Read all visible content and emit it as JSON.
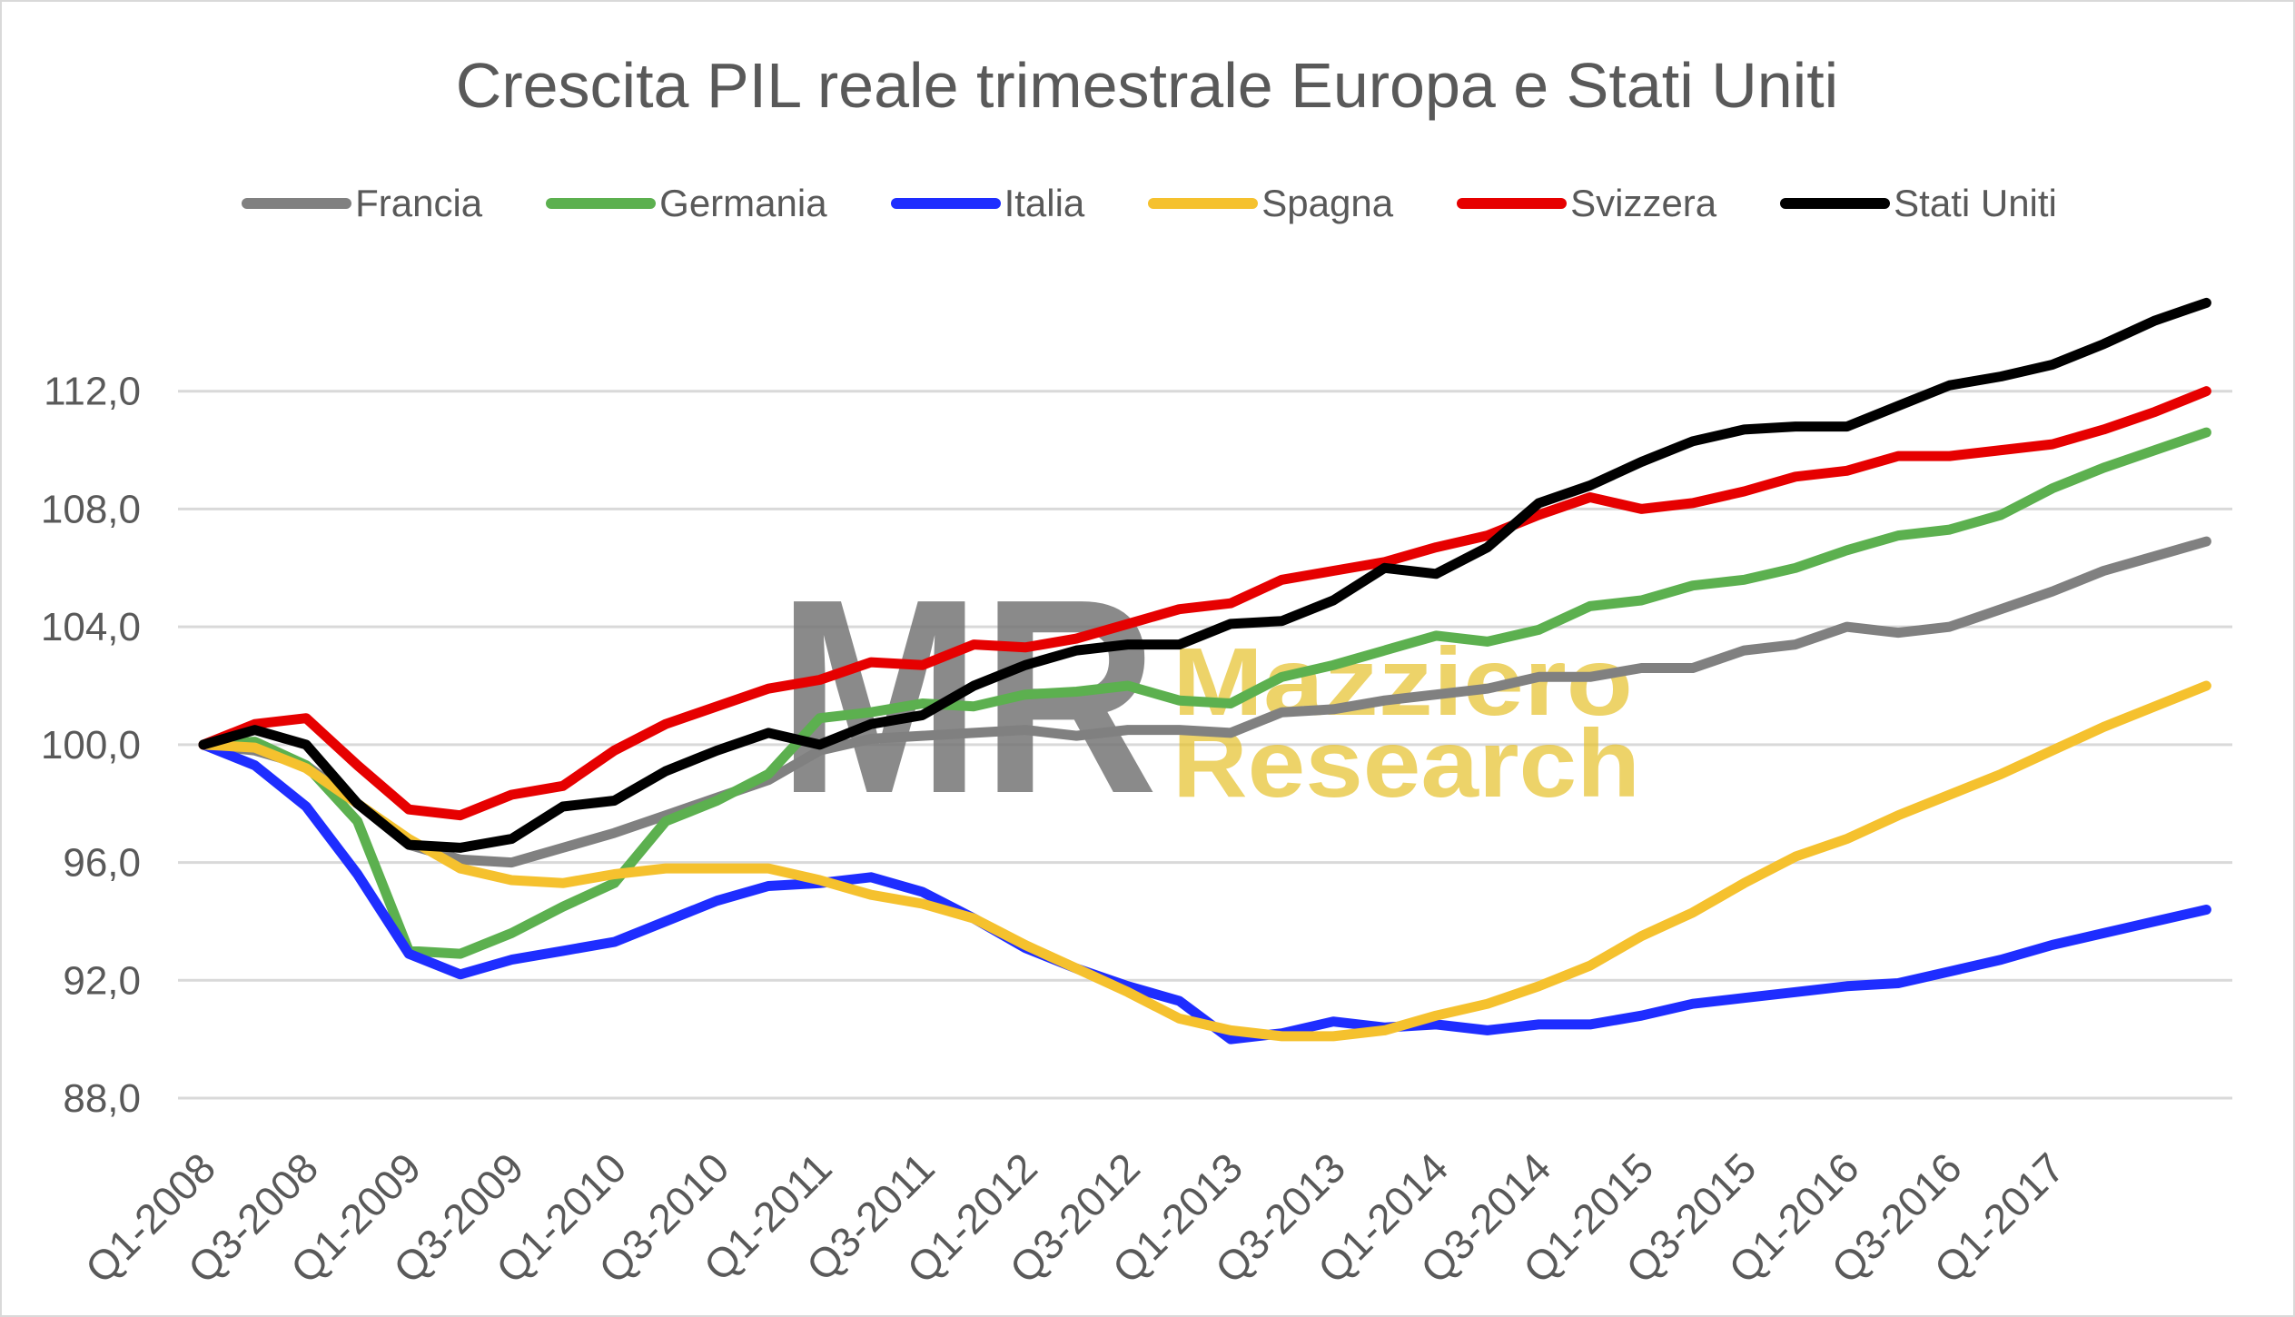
{
  "chart_data": {
    "type": "line",
    "title": "Crescita PIL reale trimestrale Europa e Stati Uniti",
    "x_tick_labels": [
      "Q1-2008",
      "Q3-2008",
      "Q1-2009",
      "Q3-2009",
      "Q1-2010",
      "Q3-2010",
      "Q1-2011",
      "Q3-2011",
      "Q1-2012",
      "Q3-2012",
      "Q1-2013",
      "Q3-2013",
      "Q1-2014",
      "Q3-2014",
      "Q1-2015",
      "Q3-2015",
      "Q1-2016",
      "Q3-2016",
      "Q1-2017"
    ],
    "y_ticks": [
      {
        "value": 88,
        "label": "88,0"
      },
      {
        "value": 92,
        "label": "92,0"
      },
      {
        "value": 96,
        "label": "96,0"
      },
      {
        "value": 100,
        "label": "100,0"
      },
      {
        "value": 104,
        "label": "104,0"
      },
      {
        "value": 108,
        "label": "108,0"
      },
      {
        "value": 112,
        "label": "112,0"
      }
    ],
    "ylim": [
      88,
      116
    ],
    "grid": "horizontal",
    "legend_position": "top",
    "series": [
      {
        "name": "Francia",
        "color": "#808080",
        "values": [
          100.0,
          99.8,
          99.3,
          98.0,
          96.6,
          96.1,
          96.0,
          96.5,
          97.0,
          97.6,
          98.2,
          98.8,
          99.8,
          100.2,
          100.3,
          100.4,
          100.5,
          100.3,
          100.5,
          100.5,
          100.4,
          101.1,
          101.2,
          101.5,
          101.7,
          101.9,
          102.3,
          102.3,
          102.6,
          102.6,
          103.2,
          103.4,
          104.0,
          103.8,
          104.0,
          104.6,
          105.2,
          105.9,
          106.4,
          106.9
        ]
      },
      {
        "name": "Germania",
        "color": "#5cb04f",
        "values": [
          100.0,
          100.1,
          99.3,
          97.4,
          93.0,
          92.9,
          93.6,
          94.5,
          95.3,
          97.4,
          98.1,
          99.0,
          100.9,
          101.1,
          101.4,
          101.3,
          101.7,
          101.8,
          102.0,
          101.5,
          101.4,
          102.3,
          102.7,
          103.2,
          103.7,
          103.5,
          103.9,
          104.7,
          104.9,
          105.4,
          105.6,
          106.0,
          106.6,
          107.1,
          107.3,
          107.8,
          108.7,
          109.4,
          110.0,
          110.6
        ]
      },
      {
        "name": "Italia",
        "color": "#1e2dff",
        "values": [
          100.0,
          99.3,
          97.9,
          95.6,
          92.9,
          92.2,
          92.7,
          93.0,
          93.3,
          94.0,
          94.7,
          95.2,
          95.3,
          95.5,
          95.0,
          94.1,
          93.1,
          92.4,
          91.8,
          91.3,
          90.0,
          90.2,
          90.6,
          90.4,
          90.5,
          90.3,
          90.5,
          90.5,
          90.8,
          91.2,
          91.4,
          91.6,
          91.8,
          91.9,
          92.3,
          92.7,
          93.2,
          93.6,
          94.0,
          94.4
        ]
      },
      {
        "name": "Spagna",
        "color": "#f5c12e",
        "values": [
          100.0,
          99.9,
          99.2,
          98.0,
          96.8,
          95.8,
          95.4,
          95.3,
          95.6,
          95.8,
          95.8,
          95.8,
          95.4,
          94.9,
          94.6,
          94.1,
          93.2,
          92.4,
          91.6,
          90.7,
          90.3,
          90.1,
          90.1,
          90.3,
          90.8,
          91.2,
          91.8,
          92.5,
          93.5,
          94.3,
          95.3,
          96.2,
          96.8,
          97.6,
          98.3,
          99.0,
          99.8,
          100.6,
          101.3,
          102.0
        ]
      },
      {
        "name": "Svizzera",
        "color": "#e60000",
        "values": [
          100.0,
          100.7,
          100.9,
          99.3,
          97.8,
          97.6,
          98.3,
          98.6,
          99.8,
          100.7,
          101.3,
          101.9,
          102.2,
          102.8,
          102.7,
          103.4,
          103.3,
          103.6,
          104.1,
          104.6,
          104.8,
          105.6,
          105.9,
          106.2,
          106.7,
          107.1,
          107.8,
          108.4,
          108.0,
          108.2,
          108.6,
          109.1,
          109.3,
          109.8,
          109.8,
          110.0,
          110.2,
          110.7,
          111.3,
          112.0
        ]
      },
      {
        "name": "Stati Uniti",
        "color": "#000000",
        "values": [
          100.0,
          100.5,
          100.0,
          98.0,
          96.6,
          96.5,
          96.8,
          97.9,
          98.1,
          99.1,
          99.8,
          100.4,
          100.0,
          100.7,
          101.0,
          102.0,
          102.7,
          103.2,
          103.4,
          103.4,
          104.1,
          104.2,
          104.9,
          106.0,
          105.8,
          106.7,
          108.2,
          108.8,
          109.6,
          110.3,
          110.7,
          110.8,
          110.8,
          111.5,
          112.2,
          112.5,
          112.9,
          113.6,
          114.4,
          115.0
        ]
      }
    ]
  },
  "watermark": {
    "mark": "MR",
    "line1": "Mazziero",
    "line2": "Research"
  }
}
